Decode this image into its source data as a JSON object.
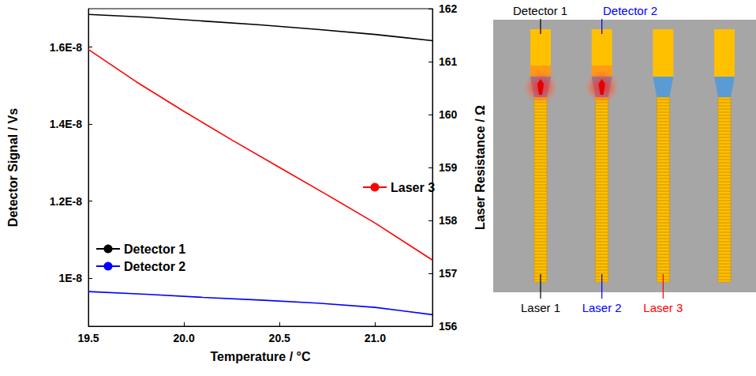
{
  "chart_data": {
    "type": "line",
    "xlabel": "Temperature / °C",
    "ylabel": "Detector Signal / Vs",
    "y2label": "Laser Resistance / Ω",
    "xlim": [
      19.5,
      21.3
    ],
    "xticks": [
      19.5,
      {
        "value": 20.0,
        "label": "20.0"
      },
      20.5,
      {
        "value": 21.0,
        "label": "21.0"
      }
    ],
    "ylim": [
      8.75e-09,
      1.7e-08
    ],
    "yticks": [
      {
        "value": 1e-08,
        "label": "1E-8"
      },
      {
        "value": 1.2e-08,
        "label": "1.2E-8"
      },
      {
        "value": 1.4e-08,
        "label": "1.4E-8"
      },
      {
        "value": 1.6e-08,
        "label": "1.6E-8"
      }
    ],
    "y2lim": [
      156,
      162
    ],
    "y2ticks": [
      156,
      157,
      158,
      159,
      160,
      161,
      162
    ],
    "grid": false,
    "legend": "lower left",
    "series": [
      {
        "name": "Detector 1",
        "color": "#000000",
        "x": [
          19.5,
          19.8,
          20.1,
          20.4,
          20.7,
          21.0,
          21.3
        ],
        "values": [
          1.685e-08,
          1.678e-08,
          1.668e-08,
          1.658e-08,
          1.646e-08,
          1.633e-08,
          1.617e-08
        ]
      },
      {
        "name": "Detector 2",
        "color": "#0000ff",
        "x": [
          19.5,
          19.8,
          20.1,
          20.4,
          20.7,
          21.0,
          21.3
        ],
        "values": [
          9.65e-09,
          9.58e-09,
          9.5e-09,
          9.43e-09,
          9.35e-09,
          9.24e-09,
          9.05e-09
        ]
      },
      {
        "name": "Laser 3",
        "color": "#ff0000",
        "axis": "y2",
        "x": [
          19.5,
          19.75,
          20.0,
          20.25,
          20.5,
          20.75,
          21.0,
          21.3
        ],
        "values": [
          161.23,
          160.62,
          160.06,
          159.52,
          159.0,
          158.48,
          157.95,
          157.25
        ]
      }
    ]
  },
  "diagram": {
    "columns": 4,
    "lit_columns": [
      1,
      2
    ],
    "detectors": [
      {
        "label": "Detector 1",
        "color": "#000000",
        "column": 1
      },
      {
        "label": "Detector 2",
        "color": "#0000ff",
        "column": 2
      }
    ],
    "lasers": [
      {
        "label": "Laser 1",
        "color": "#000000",
        "column": 1
      },
      {
        "label": "Laser 2",
        "color": "#0000ff",
        "column": 2
      },
      {
        "label": "Laser 3",
        "color": "#ff0000",
        "column": 3
      }
    ]
  }
}
